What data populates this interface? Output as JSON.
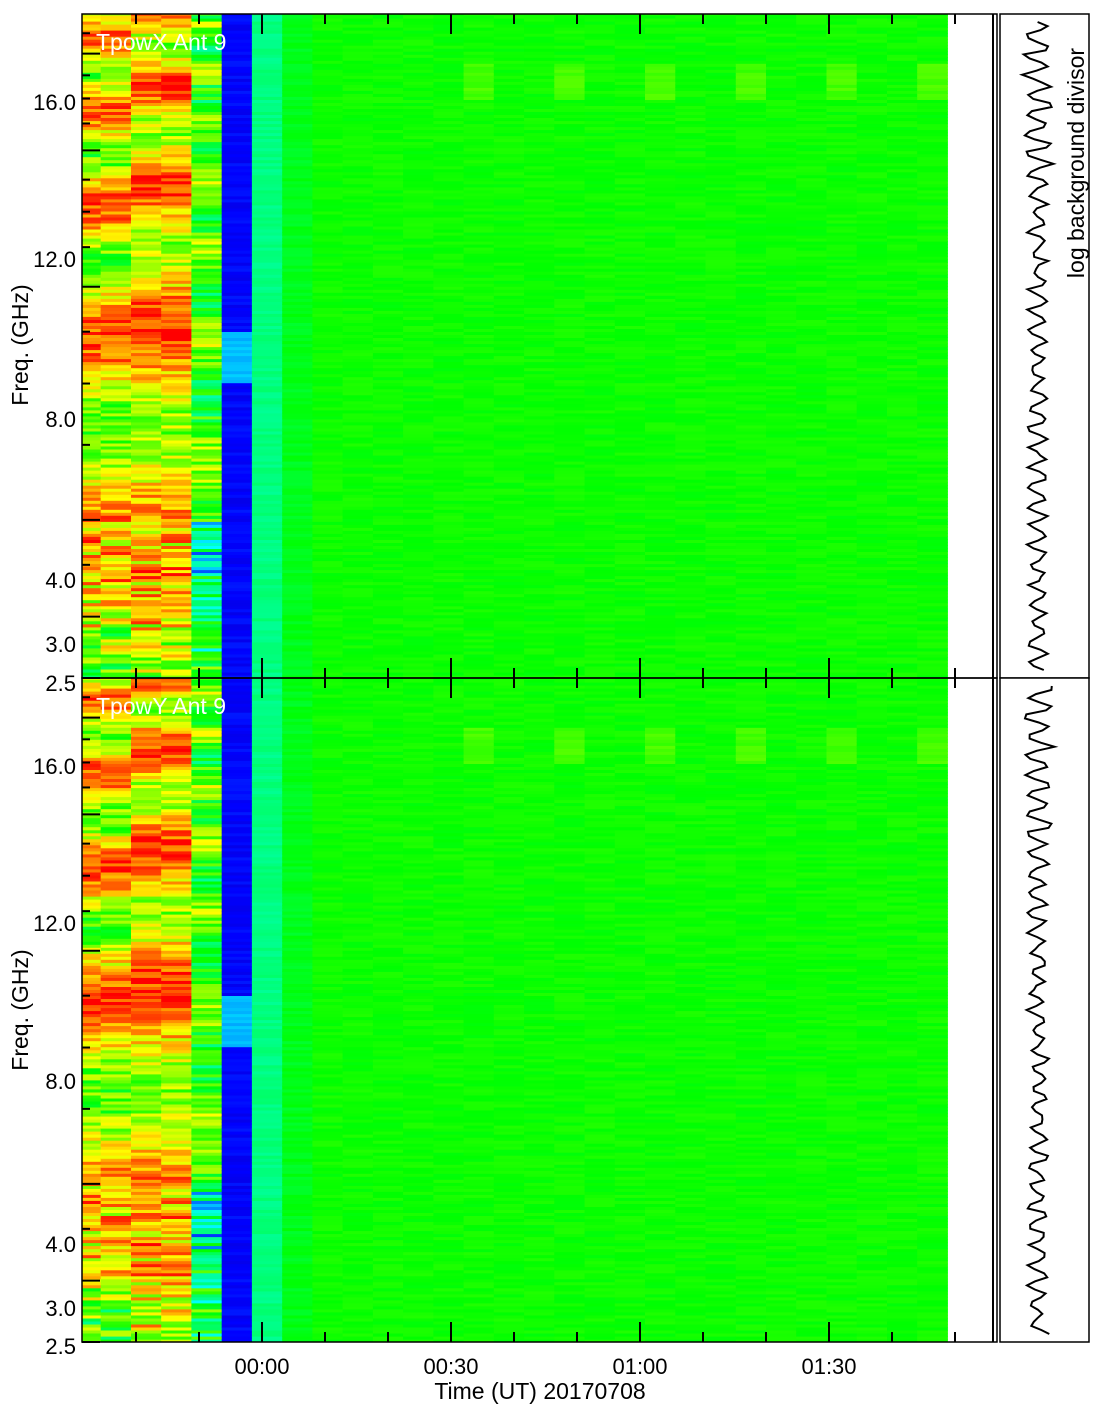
{
  "chart_data": [
    {
      "type": "heatmap",
      "panel_label": "TpowX Ant 9",
      "ylabel": "Freq. (GHz)",
      "yscale": "log",
      "ylim": [
        2.5,
        18.0
      ],
      "yticks": [
        {
          "value": 16.0,
          "label": "16.0"
        },
        {
          "value": 12.0,
          "label": "12.0"
        },
        {
          "value": 8.0,
          "label": "8.0"
        },
        {
          "value": 4.0,
          "label": "4.0"
        },
        {
          "value": 3.0,
          "label": "3.0"
        },
        {
          "value": 2.5,
          "label": "2.5"
        }
      ],
      "colormap": [
        "#1a0066",
        "#0000ff",
        "#00ffff",
        "#00ff00",
        "#ffff00",
        "#ff0000"
      ],
      "columns": [
        {
          "start": "-00:37",
          "end": "-00:27",
          "level": 0.72
        },
        {
          "start": "-00:27",
          "end": "-00:18",
          "level": 0.78
        },
        {
          "start": "-00:18",
          "end": "-00:09",
          "level": 0.82
        },
        {
          "start": "-00:09",
          "end": "-00:00",
          "level": 0.58
        },
        {
          "start": "-00:00",
          "end": "00:09",
          "level": 0.12
        },
        {
          "start": "00:09",
          "end": "00:18",
          "level": 0.42
        },
        {
          "start": "00:18",
          "end": "00:27",
          "level": 0.49
        },
        {
          "start": "00:27",
          "end": "01:50",
          "level": 0.52
        }
      ],
      "side_panel_label": "log background divisor"
    },
    {
      "type": "heatmap",
      "panel_label": "TpowY Ant 9",
      "ylabel": "Freq. (GHz)",
      "yscale": "log",
      "ylim": [
        2.5,
        18.0
      ],
      "yticks": [
        {
          "value": 16.0,
          "label": "16.0"
        },
        {
          "value": 12.0,
          "label": "12.0"
        },
        {
          "value": 8.0,
          "label": "8.0"
        },
        {
          "value": 4.0,
          "label": "4.0"
        },
        {
          "value": 3.0,
          "label": "3.0"
        },
        {
          "value": 2.5,
          "label": "2.5"
        }
      ],
      "xlabel": "Time (UT) 20170708",
      "xticks": [
        "00:00",
        "00:30",
        "01:00",
        "01:30"
      ],
      "colormap": [
        "#1a0066",
        "#0000ff",
        "#00ffff",
        "#00ff00",
        "#ffff00",
        "#ff0000"
      ],
      "columns": [
        {
          "start": "-00:37",
          "end": "-00:27",
          "level": 0.72
        },
        {
          "start": "-00:27",
          "end": "-00:18",
          "level": 0.78
        },
        {
          "start": "-00:18",
          "end": "-00:09",
          "level": 0.82
        },
        {
          "start": "-00:09",
          "end": "-00:00",
          "level": 0.58
        },
        {
          "start": "-00:00",
          "end": "00:09",
          "level": 0.12
        },
        {
          "start": "00:09",
          "end": "00:18",
          "level": 0.42
        },
        {
          "start": "00:18",
          "end": "00:27",
          "level": 0.49
        },
        {
          "start": "00:27",
          "end": "01:50",
          "level": 0.52
        }
      ]
    }
  ]
}
